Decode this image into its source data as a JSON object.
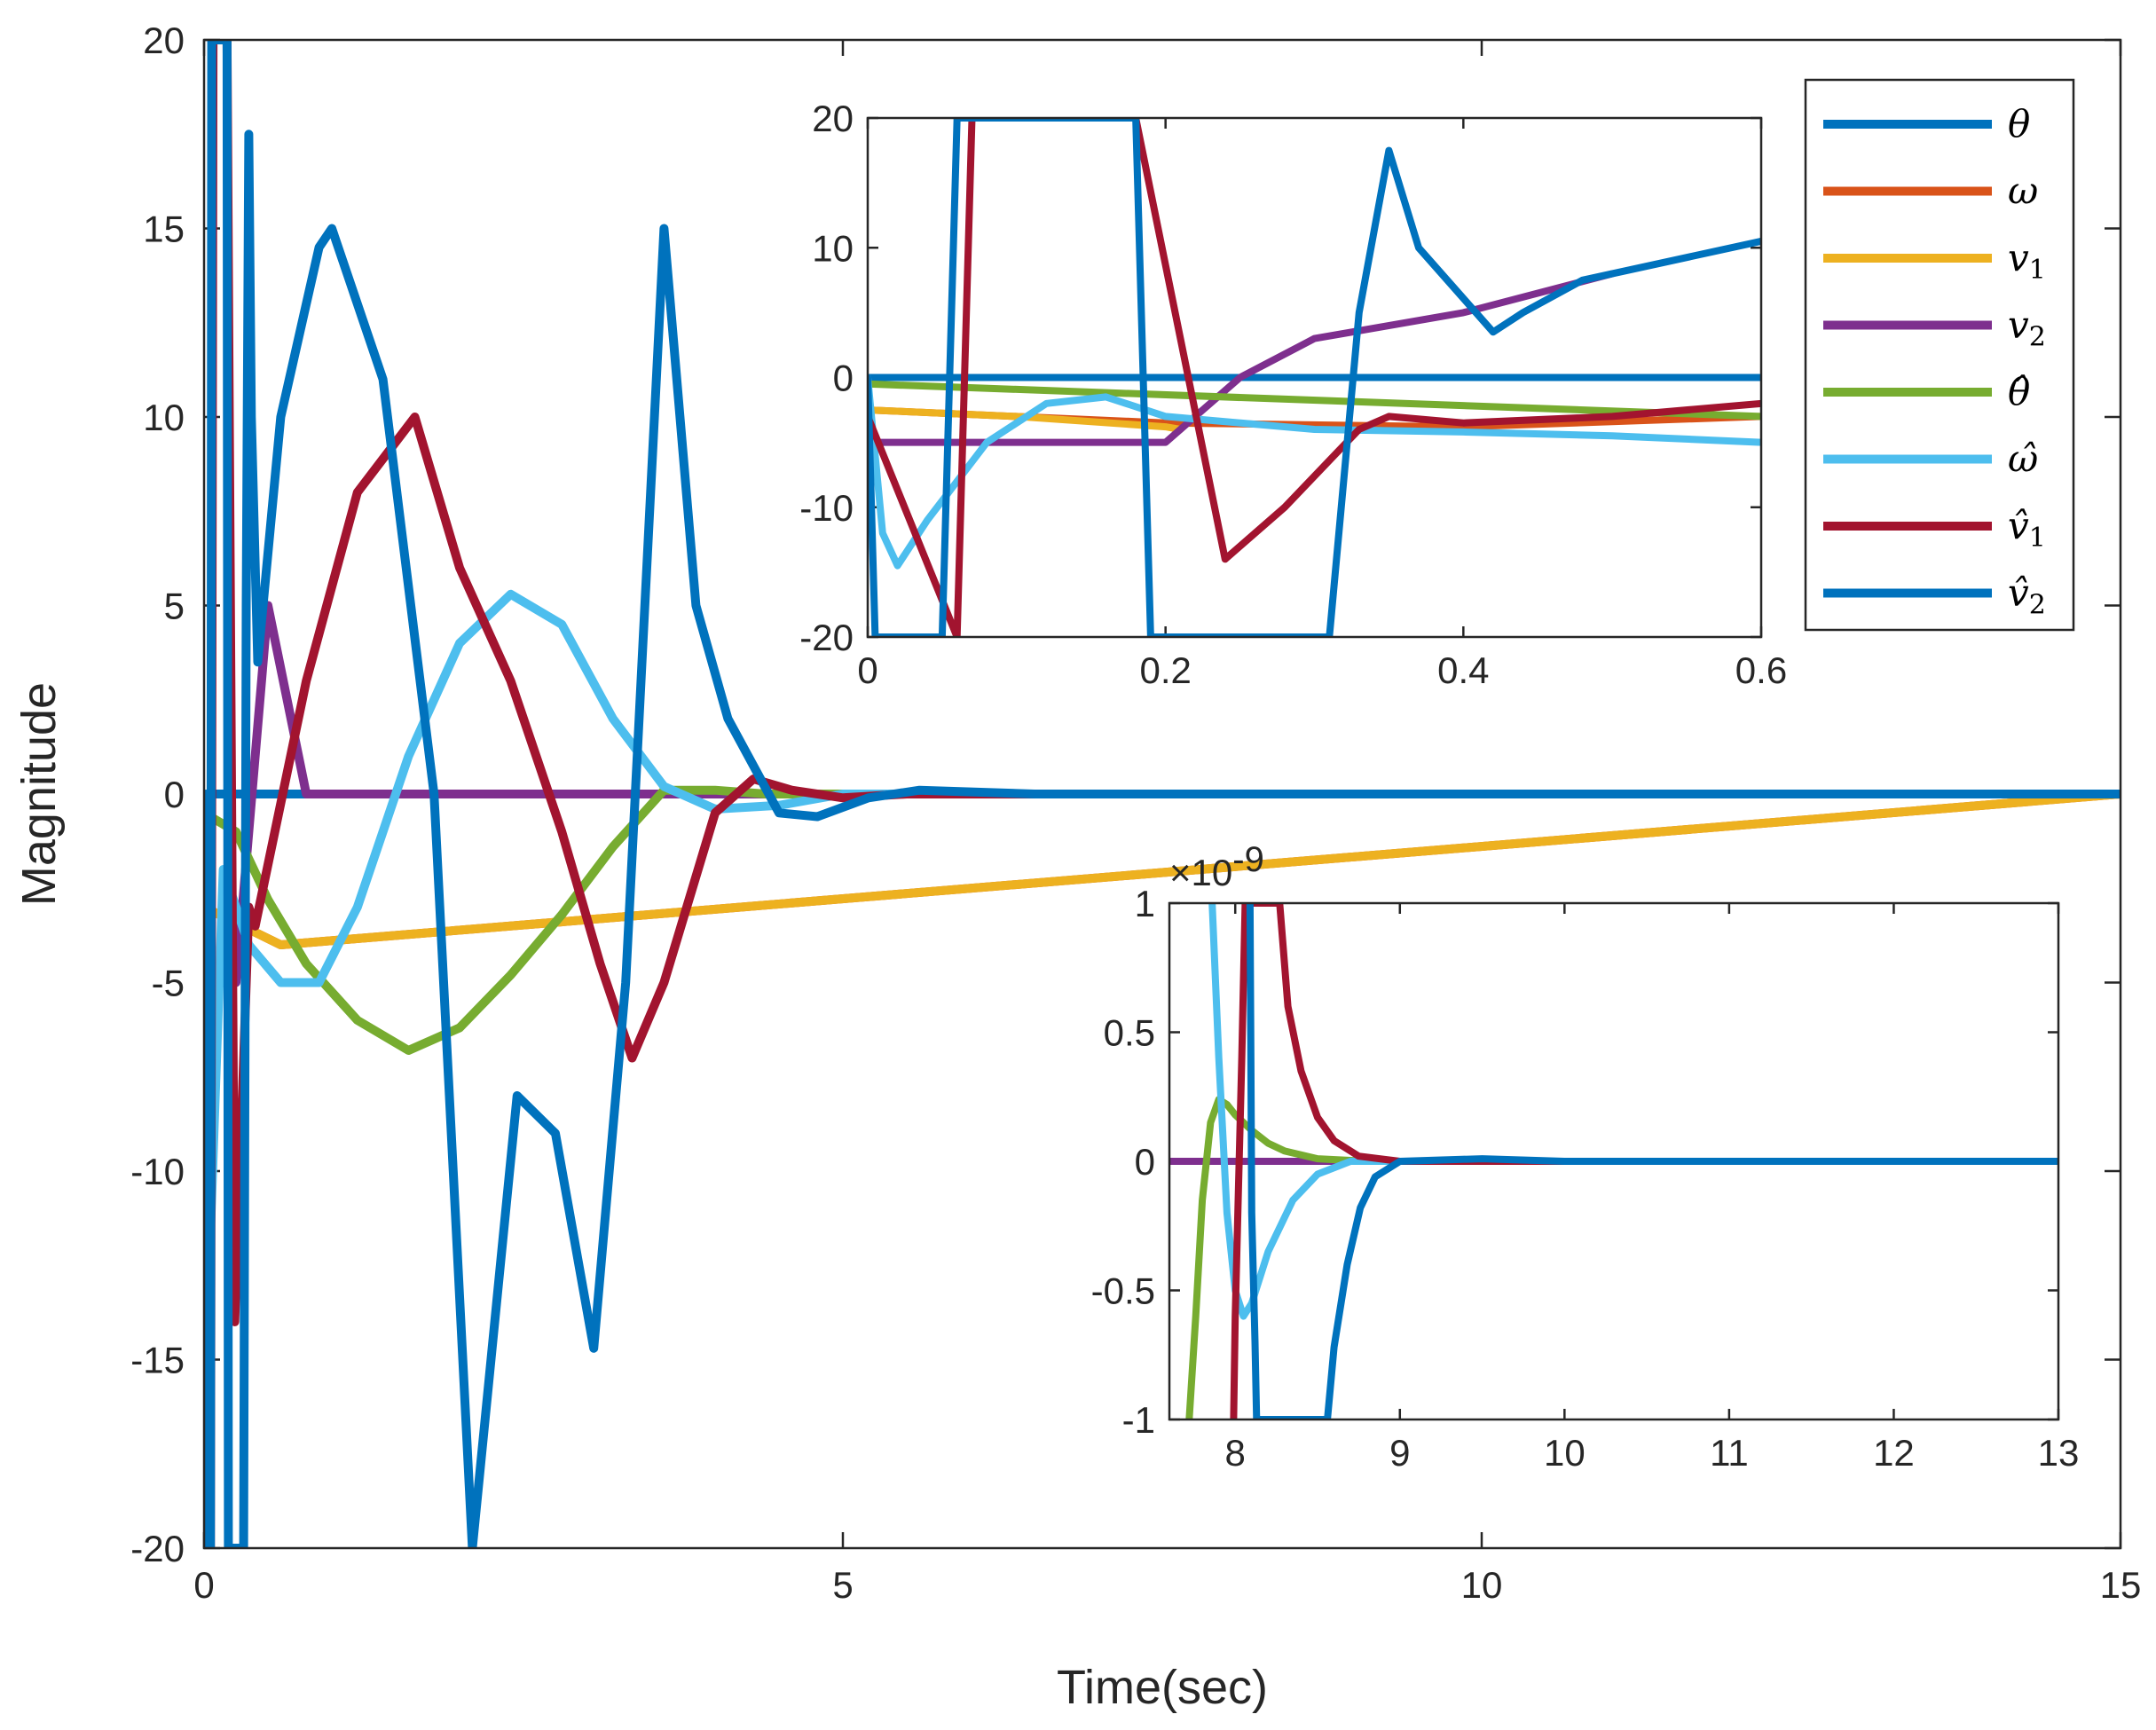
{
  "chart_data": {
    "type": "line",
    "xlabel": "Time(sec)",
    "ylabel": "Magnitude",
    "legend": {
      "placement": "top-right",
      "entries": [
        "θ",
        "ω",
        "v1",
        "v2",
        "θ̂",
        "ω̂",
        "v̂1",
        "v̂2"
      ]
    },
    "colors": [
      "#0072BD",
      "#D95319",
      "#EDB120",
      "#7E2F8E",
      "#77AC30",
      "#4DBEEE",
      "#A2142F",
      "#0072BD"
    ],
    "panels": [
      {
        "id": "main",
        "xlim": [
          0,
          15
        ],
        "ylim": [
          -20,
          20
        ],
        "xticks": [
          0,
          5,
          10,
          15
        ],
        "xtick_labels": [
          "0",
          "5",
          "10",
          "15"
        ],
        "yticks": [
          -20,
          -15,
          -10,
          -5,
          0,
          5,
          10,
          15,
          20
        ],
        "ytick_labels": [
          "-20",
          "-15",
          "-10",
          "-5",
          "0",
          "5",
          "10",
          "15",
          "20"
        ],
        "series": [
          {
            "name": "θ",
            "x": [
              0,
              0.6,
              15
            ],
            "y": [
              0,
              0,
              0
            ]
          },
          {
            "name": "ω",
            "x": [
              0,
              0.3,
              0.6,
              15
            ],
            "y": [
              -3,
              -3.5,
              -4,
              0
            ]
          },
          {
            "name": "v1",
            "x": [
              0,
              0.3,
              0.6,
              15
            ],
            "y": [
              -3,
              -3.5,
              -4,
              0
            ]
          },
          {
            "name": "v2",
            "x": [
              0,
              0.25,
              0.5,
              0.8,
              15
            ],
            "y": [
              -5,
              -5,
              5,
              0,
              0
            ]
          },
          {
            "name": "θ̂",
            "x": [
              0,
              0.25,
              0.5,
              0.8,
              1.2,
              1.6,
              2.0,
              2.4,
              2.8,
              3.2,
              3.6,
              4.0,
              4.4,
              5.0,
              15
            ],
            "y": [
              -0.5,
              -1,
              -2.8,
              -4.5,
              -6,
              -6.8,
              -6.2,
              -4.8,
              -3.2,
              -1.4,
              0.1,
              0.1,
              0,
              0,
              0
            ]
          },
          {
            "name": "ω̂",
            "x": [
              0,
              0.02,
              0.15,
              0.35,
              0.6,
              0.9,
              1.2,
              1.6,
              2.0,
              2.4,
              2.8,
              3.2,
              3.6,
              4.0,
              4.5,
              5.0,
              15
            ],
            "y": [
              0,
              -14.5,
              -2,
              -4,
              -5,
              -5,
              -3,
              1,
              4,
              5.3,
              4.5,
              2,
              0.2,
              -0.4,
              -0.3,
              0,
              0
            ]
          },
          {
            "name": "v̂1",
            "x": [
              0,
              0.05,
              0.07,
              0.18,
              0.24,
              0.35,
              0.4,
              0.8,
              1.2,
              1.65,
              2.0,
              2.4,
              2.8,
              3.1,
              3.35,
              3.6,
              4.0,
              4.3,
              4.6,
              5.0,
              5.5,
              15
            ],
            "y": [
              -3,
              -20,
              20,
              20,
              -14,
              -3,
              -3.5,
              3,
              8,
              10,
              6,
              3,
              -1,
              -4.5,
              -7,
              -5,
              -0.5,
              0.4,
              0.1,
              -0.1,
              0,
              0
            ]
          },
          {
            "name": "v̂2",
            "x": [
              0,
              0.005,
              0.05,
              0.06,
              0.18,
              0.19,
              0.31,
              0.33,
              0.35,
              0.37,
              0.42,
              0.6,
              0.9,
              1.0,
              1.4,
              1.8,
              1.95,
              2.1,
              2.45,
              2.75,
              3.05,
              3.3,
              3.6,
              3.85,
              4.1,
              4.5,
              4.8,
              5.2,
              5.6,
              6.5,
              15
            ],
            "y": [
              0,
              -20,
              -20,
              20,
              20,
              -20,
              -20,
              5,
              17.5,
              10,
              3.5,
              10,
              14.5,
              15,
              11,
              0,
              -10,
              -20,
              -8,
              -9,
              -14.7,
              -5,
              15,
              5,
              2,
              -0.5,
              -0.6,
              -0.1,
              0.1,
              0,
              0
            ]
          }
        ]
      },
      {
        "id": "inset-top",
        "xlim": [
          0,
          0.6
        ],
        "ylim": [
          -20,
          20
        ],
        "xticks": [
          0,
          0.2,
          0.4,
          0.6
        ],
        "xtick_labels": [
          "0",
          "0.2",
          "0.4",
          "0.6"
        ],
        "yticks": [
          -20,
          -10,
          0,
          10,
          20
        ],
        "ytick_labels": [
          "-20",
          "-10",
          "0",
          "10",
          "20"
        ],
        "series": [
          {
            "name": "θ",
            "x": [
              0,
              0.6
            ],
            "y": [
              0,
              0
            ]
          },
          {
            "name": "ω",
            "x": [
              0,
              0.2,
              0.4,
              0.6
            ],
            "y": [
              -2.5,
              -3.5,
              -3.8,
              -3
            ]
          },
          {
            "name": "v1",
            "x": [
              0,
              0.1,
              0.2,
              0.21
            ],
            "y": [
              -2.5,
              -3,
              -3.8,
              -4
            ]
          },
          {
            "name": "v2",
            "x": [
              0,
              0.2,
              0.22,
              0.25,
              0.3,
              0.4,
              0.5
            ],
            "y": [
              -5,
              -5,
              -3,
              0,
              3,
              5,
              8
            ]
          },
          {
            "name": "θ̂",
            "x": [
              0,
              0.6
            ],
            "y": [
              -0.5,
              -3
            ]
          },
          {
            "name": "ω̂",
            "x": [
              0,
              0.01,
              0.02,
              0.04,
              0.08,
              0.12,
              0.16,
              0.2,
              0.3,
              0.4,
              0.5,
              0.6
            ],
            "y": [
              0,
              -12,
              -14.5,
              -11,
              -5,
              -2,
              -1.5,
              -3,
              -4,
              -4.2,
              -4.5,
              -5
            ]
          },
          {
            "name": "v̂1",
            "x": [
              0,
              0.06,
              0.07,
              0.18,
              0.24,
              0.28,
              0.33,
              0.35,
              0.4,
              0.5,
              0.6
            ],
            "y": [
              -3,
              -20,
              20,
              20,
              -14,
              -10,
              -4,
              -3,
              -3.5,
              -3,
              -2
            ]
          },
          {
            "name": "v̂2",
            "x": [
              0,
              0.005,
              0.05,
              0.06,
              0.18,
              0.19,
              0.31,
              0.33,
              0.35,
              0.37,
              0.42,
              0.44,
              0.48,
              0.6
            ],
            "y": [
              0,
              -20,
              -20,
              20,
              20,
              -20,
              -20,
              5,
              17.5,
              10,
              3.5,
              5,
              7.5,
              10.5
            ]
          }
        ]
      },
      {
        "id": "inset-bottom",
        "xlim": [
          7.6,
          13
        ],
        "ylim": [
          -1,
          1
        ],
        "scale_label": "×10",
        "scale_exponent": "-9",
        "xticks": [
          8,
          9,
          10,
          11,
          12,
          13
        ],
        "xtick_labels": [
          "8",
          "9",
          "10",
          "11",
          "12",
          "13"
        ],
        "yticks": [
          -1,
          -0.5,
          0,
          0.5,
          1
        ],
        "ytick_labels": [
          "-1",
          "-0.5",
          "0",
          "0.5",
          "1"
        ],
        "series": [
          {
            "name": "θ",
            "x": [
              7.6,
              13
            ],
            "y": [
              0,
              0
            ]
          },
          {
            "name": "ω",
            "x": [
              7.6,
              13
            ],
            "y": [
              0,
              0
            ]
          },
          {
            "name": "v1",
            "x": [
              7.6,
              13
            ],
            "y": [
              0,
              0
            ]
          },
          {
            "name": "v2",
            "x": [
              7.6,
              13
            ],
            "y": [
              0,
              0
            ]
          },
          {
            "name": "θ̂",
            "x": [
              7.72,
              7.76,
              7.8,
              7.85,
              7.9,
              7.95,
              8.0,
              8.1,
              8.2,
              8.3,
              8.5,
              8.8,
              13
            ],
            "y": [
              -1,
              -0.6,
              -0.15,
              0.15,
              0.24,
              0.22,
              0.18,
              0.12,
              0.07,
              0.04,
              0.01,
              0,
              0
            ]
          },
          {
            "name": "ω̂",
            "x": [
              7.86,
              7.9,
              7.95,
              8.0,
              8.05,
              8.1,
              8.2,
              8.35,
              8.5,
              8.7,
              9.0,
              13
            ],
            "y": [
              1,
              0.4,
              -0.2,
              -0.5,
              -0.6,
              -0.55,
              -0.35,
              -0.15,
              -0.05,
              0,
              0,
              0
            ]
          },
          {
            "name": "v̂1",
            "x": [
              7.99,
              8.0,
              8.04,
              8.06,
              8.27,
              8.32,
              8.4,
              8.5,
              8.6,
              8.75,
              9.0,
              13
            ],
            "y": [
              -1,
              -0.6,
              0.4,
              1,
              1,
              0.6,
              0.35,
              0.17,
              0.08,
              0.02,
              0,
              0
            ]
          },
          {
            "name": "v̂2",
            "x": [
              8.09,
              8.1,
              8.12,
              8.13,
              8.56,
              8.6,
              8.68,
              8.76,
              8.85,
              9.0,
              9.5,
              10,
              13
            ],
            "y": [
              1,
              -0.2,
              -0.7,
              -1,
              -1,
              -0.72,
              -0.4,
              -0.18,
              -0.06,
              0,
              0.01,
              0,
              0
            ]
          }
        ]
      }
    ]
  }
}
